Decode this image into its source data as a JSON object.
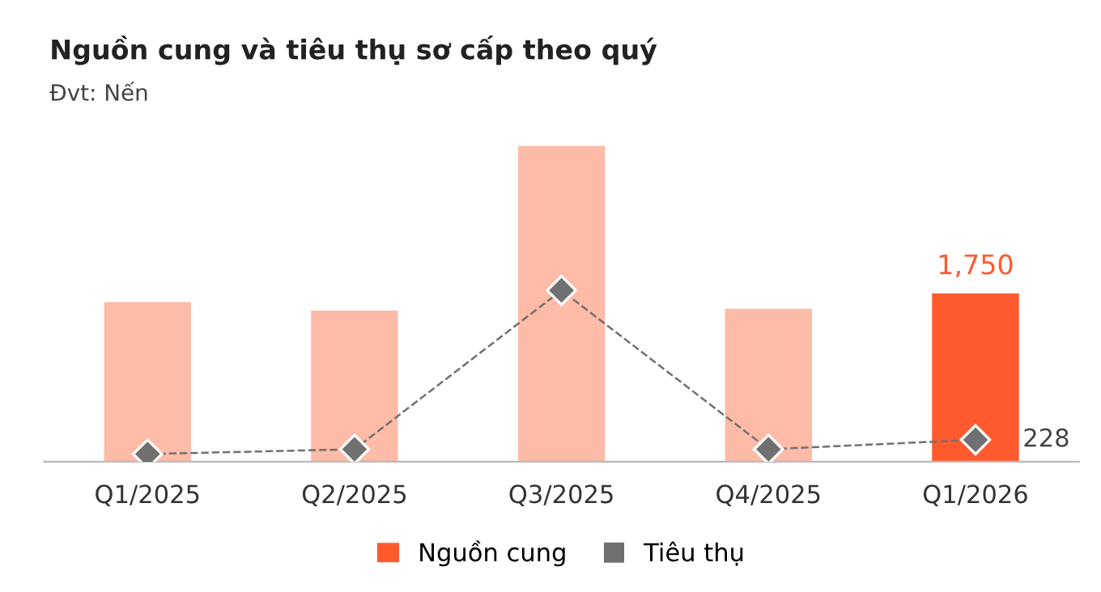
{
  "chart_data": {
    "type": "bar",
    "title": "Nguồn cung và tiêu thụ sơ cấp theo quý",
    "subtitle": "Đvt: Nến",
    "categories": [
      "Q1/2025",
      "Q2/2025",
      "Q3/2025",
      "Q4/2025",
      "Q1/2026"
    ],
    "tick_labels": "x",
    "series": [
      {
        "name": "Nguồn cung",
        "color": "#ff5a2e",
        "colors": [
          "#fdbba8",
          "#fdbba8",
          "#fdbba8",
          "#fdbba8",
          "#ff5a2e"
        ],
        "values": [
          1660,
          1570,
          3280,
          1590,
          1750
        ],
        "value_labels": [
          null,
          null,
          null,
          null,
          "1,750"
        ]
      },
      {
        "name": "Tiêu thụ",
        "type": "line",
        "color": "#707070",
        "marker": "diamond",
        "line_style": "dashed",
        "values": [
          80,
          130,
          1780,
          130,
          228
        ],
        "value_labels": [
          null,
          null,
          null,
          null,
          "228"
        ]
      }
    ],
    "legend": "bottom",
    "grid": false
  }
}
